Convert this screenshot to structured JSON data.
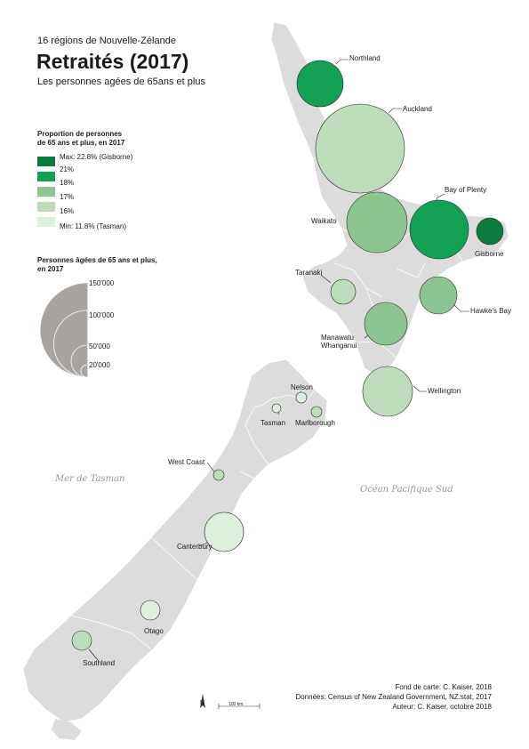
{
  "header": {
    "supertitle": "16 régions de Nouvelle-Zélande",
    "title": "Retraités (2017)",
    "subtitle": "Les personnes agées de 65ans et plus"
  },
  "color_legend": {
    "title_line1": "Proportion de personnes",
    "title_line2": "de 65 ans et plus, en 2017",
    "breaks": [
      "Max: 22.8% (Gisborne)",
      "21%",
      "18%",
      "17%",
      "16%",
      "Min: 11.8% (Tasman)"
    ],
    "colors": [
      "#0b7a3e",
      "#12a152",
      "#8cc492",
      "#bcdcbc",
      "#deefde"
    ]
  },
  "size_legend": {
    "title_line1": "Personnes âgées de 65 ans et plus,",
    "title_line2": "en 2017",
    "values": [
      "150'000",
      "100'000",
      "50'000",
      "20'000"
    ],
    "color": "#a9a4a2"
  },
  "regions": [
    {
      "name": "Northland",
      "color": "#12a152",
      "radius": 26
    },
    {
      "name": "Auckland",
      "color": "#bcdcbc",
      "radius": 50
    },
    {
      "name": "Bay of Plenty",
      "color": "#12a152",
      "radius": 33
    },
    {
      "name": "Waikato",
      "color": "#8cc492",
      "radius": 34
    },
    {
      "name": "Gisborne",
      "color": "#0b7a3e",
      "radius": 14
    },
    {
      "name": "Taranaki",
      "color": "#bcdcbc",
      "radius": 14
    },
    {
      "name": "Hawke's Bay",
      "color": "#8cc492",
      "radius": 21
    },
    {
      "name": "Manawatu",
      "color": "#8cc492",
      "radius": 24
    },
    {
      "name": "Whanganui",
      "color": "#8cc492",
      "radius": 0
    },
    {
      "name": "Wellington",
      "color": "#bcdcbc",
      "radius": 28
    },
    {
      "name": "Nelson",
      "color": "#deefde",
      "radius": 6
    },
    {
      "name": "Tasman",
      "color": "#deefde",
      "radius": 5
    },
    {
      "name": "Marlborough",
      "color": "#bcdcbc",
      "radius": 6
    },
    {
      "name": "West Coast",
      "color": "#bcdcbc",
      "radius": 6
    },
    {
      "name": "Canterbury",
      "color": "#deefde",
      "radius": 22
    },
    {
      "name": "Otago",
      "color": "#deefde",
      "radius": 11
    },
    {
      "name": "Southland",
      "color": "#bcdcbc",
      "radius": 11
    }
  ],
  "seas": {
    "west": "Mer de Tasman",
    "east": "Océan Pacifique Sud"
  },
  "scale_bar": {
    "label": "100 km"
  },
  "north_arrow": {
    "label": "N"
  },
  "credits": {
    "line1": "Fond de carte: C. Kaiser, 2018",
    "line2": "Données: Census of New Zealand Government, NZ.stat, 2017",
    "line3": "Auteur: C. Kaiser, octobre 2018"
  }
}
